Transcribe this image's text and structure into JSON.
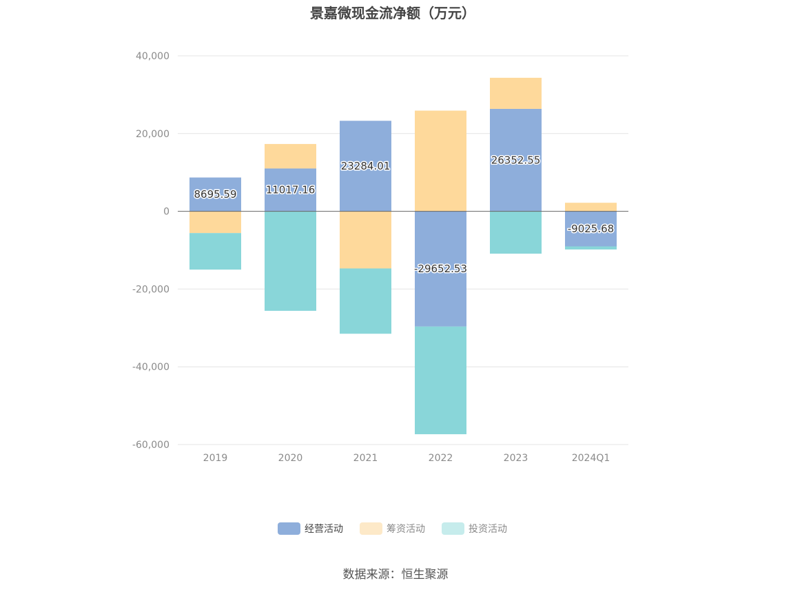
{
  "chart_data": {
    "type": "bar",
    "stacked": true,
    "title": "景嘉微现金流净额（万元）",
    "categories": [
      "2019",
      "2020",
      "2021",
      "2022",
      "2023",
      "2024Q1"
    ],
    "ylim": [
      -60000,
      40000
    ],
    "yticks": [
      40000,
      20000,
      0,
      -20000,
      -40000,
      -60000
    ],
    "ytick_labels": [
      "40,000",
      "20,000",
      "0",
      "-20,000",
      "-40,000",
      "-60,000"
    ],
    "series": [
      {
        "name": "经营活动",
        "color": "#8eaedb",
        "values": [
          8695.59,
          11017.16,
          23284.01,
          -29652.53,
          26352.55,
          -9025.68
        ]
      },
      {
        "name": "筹资活动",
        "color": "#fed99b",
        "values": [
          -5600,
          6300,
          -14700,
          25900,
          8000,
          2200
        ]
      },
      {
        "name": "投资活动",
        "color": "#89d6d9",
        "values": [
          -9400,
          -25600,
          -16800,
          -27700,
          -10900,
          -800
        ]
      }
    ],
    "data_labels": [
      "8695.59",
      "11017.16",
      "23284.01",
      "-29652.53",
      "26352.55",
      "-9025.68"
    ],
    "legend_position": "bottom-center",
    "grid": true
  },
  "legend": {
    "items": [
      {
        "label": "经营活动",
        "color": "#8eaedb",
        "text_color": "#444444"
      },
      {
        "label": "筹资活动",
        "color": "#fde9c8",
        "text_color": "#8a8a8a"
      },
      {
        "label": "投资活动",
        "color": "#c6ecec",
        "text_color": "#8a8a8a"
      }
    ]
  },
  "source": "数据来源：恒生聚源"
}
